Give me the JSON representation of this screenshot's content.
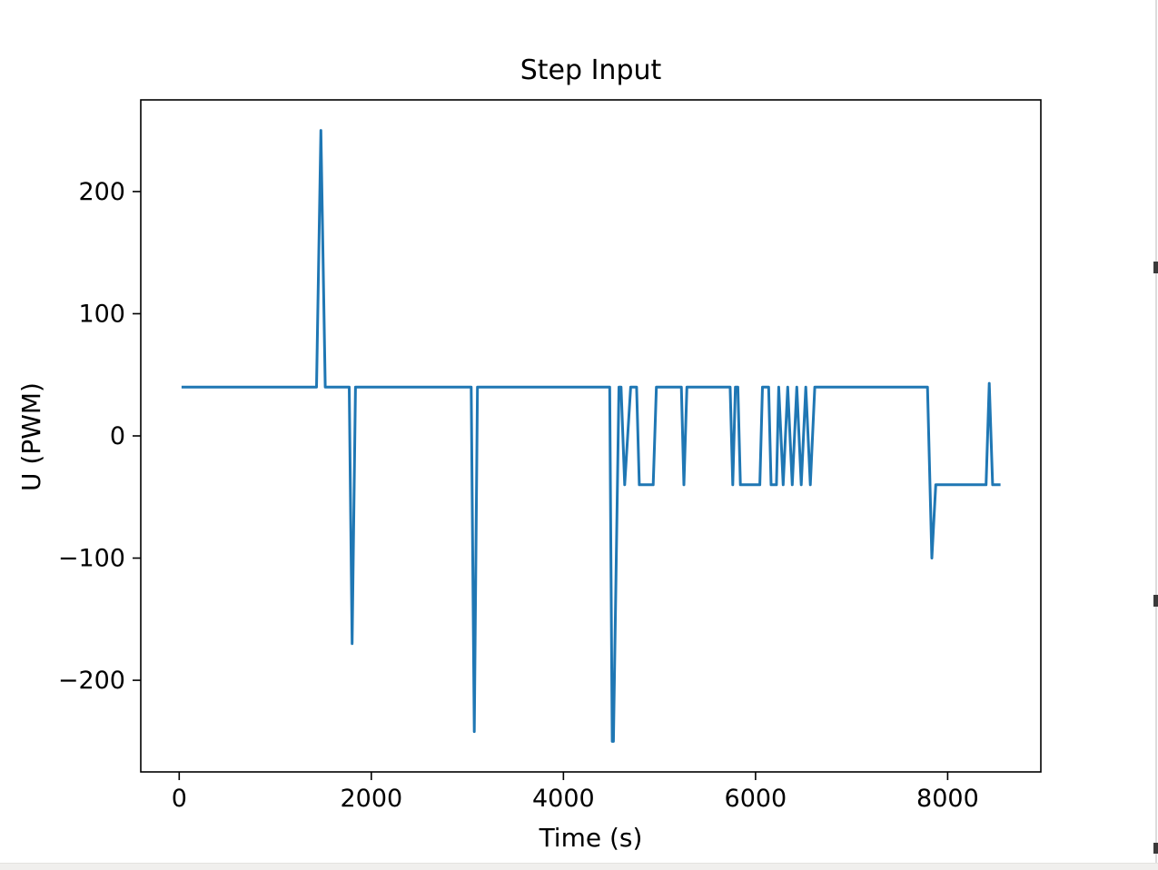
{
  "window": {
    "background": "#ffffff",
    "artifacts": {
      "right_edge_line_color": "#dcdcdc",
      "edge_mark_color": "#3a3a3a",
      "bottom_strip_color": "#f0efed"
    }
  },
  "chart_data": {
    "type": "line",
    "title": "Step Input",
    "xlabel": "Time (s)",
    "ylabel": "U (PWM)",
    "xlim": [
      -400,
      8970
    ],
    "ylim": [
      -275,
      275
    ],
    "grid": false,
    "legend": "none",
    "line_color": "#1f77b4",
    "line_width": 3,
    "axis_color": "#000000",
    "x_ticks": [
      {
        "value": 0,
        "label": "0"
      },
      {
        "value": 2000,
        "label": "2000"
      },
      {
        "value": 4000,
        "label": "4000"
      },
      {
        "value": 6000,
        "label": "6000"
      },
      {
        "value": 8000,
        "label": "8000"
      }
    ],
    "y_ticks": [
      {
        "value": -200,
        "label": "−200"
      },
      {
        "value": -100,
        "label": "−100"
      },
      {
        "value": 0,
        "label": "0"
      },
      {
        "value": 100,
        "label": "100"
      },
      {
        "value": 200,
        "label": "200"
      }
    ],
    "series": [
      {
        "points": [
          [
            25,
            40
          ],
          [
            1430,
            40
          ],
          [
            1475,
            250
          ],
          [
            1520,
            40
          ],
          [
            1770,
            40
          ],
          [
            1800,
            -170
          ],
          [
            1835,
            40
          ],
          [
            3040,
            40
          ],
          [
            3072,
            -242
          ],
          [
            3105,
            40
          ],
          [
            4482,
            40
          ],
          [
            4508,
            -250
          ],
          [
            4520,
            -250
          ],
          [
            4578,
            40
          ],
          [
            4600,
            40
          ],
          [
            4638,
            -40
          ],
          [
            4700,
            40
          ],
          [
            4762,
            40
          ],
          [
            4790,
            -40
          ],
          [
            4935,
            -40
          ],
          [
            4968,
            40
          ],
          [
            5228,
            40
          ],
          [
            5254,
            -40
          ],
          [
            5285,
            40
          ],
          [
            5735,
            40
          ],
          [
            5763,
            -40
          ],
          [
            5790,
            40
          ],
          [
            5816,
            40
          ],
          [
            5842,
            -40
          ],
          [
            6045,
            -40
          ],
          [
            6072,
            40
          ],
          [
            6136,
            40
          ],
          [
            6162,
            -40
          ],
          [
            6218,
            -40
          ],
          [
            6241,
            40
          ],
          [
            6288,
            -40
          ],
          [
            6335,
            40
          ],
          [
            6382,
            -40
          ],
          [
            6429,
            40
          ],
          [
            6476,
            -40
          ],
          [
            6523,
            40
          ],
          [
            6570,
            -40
          ],
          [
            6617,
            40
          ],
          [
            7790,
            40
          ],
          [
            7835,
            -100
          ],
          [
            7876,
            -40
          ],
          [
            8400,
            -40
          ],
          [
            8433,
            43
          ],
          [
            8468,
            -40
          ],
          [
            8550,
            -40
          ]
        ]
      }
    ]
  }
}
